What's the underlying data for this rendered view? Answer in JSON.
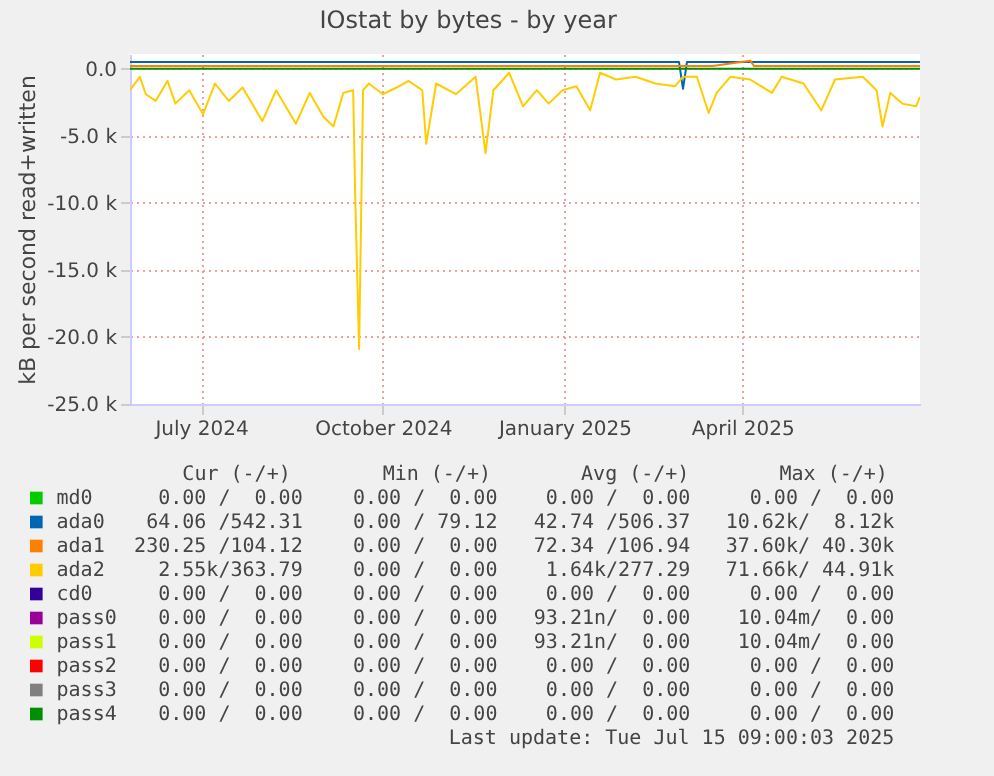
{
  "chart_data": {
    "type": "line",
    "title": "IOstat by bytes - by year",
    "ylabel": "kB per second read+written",
    "xlim": [
      "2024-06-10",
      "2025-07-15"
    ],
    "xticks": [
      {
        "value": "2024-07-16",
        "label": "July 2024"
      },
      {
        "value": "2024-10-16",
        "label": "October 2024"
      },
      {
        "value": "2025-01-16",
        "label": "January 2025"
      },
      {
        "value": "2025-04-16",
        "label": "April 2025"
      }
    ],
    "ylim": [
      -25000,
      1100
    ],
    "yticks": [
      {
        "value": -25000,
        "label": "-25.0 k"
      },
      {
        "value": -20000,
        "label": "-20.0 k"
      },
      {
        "value": -15000,
        "label": "-15.0 k"
      },
      {
        "value": -10000,
        "label": "-10.0 k"
      },
      {
        "value": -5000,
        "label": "-5.0 k"
      },
      {
        "value": 0,
        "label": "0.0"
      }
    ],
    "grid": true,
    "legend": "bottom",
    "series": [
      {
        "name": "md0",
        "color": "#00cc00"
      },
      {
        "name": "ada0",
        "color": "#0066b3",
        "x": [
          "2024-06-10",
          "2024-08-01",
          "2024-10-01",
          "2024-12-01",
          "2025-02-01",
          "2025-03-15",
          "2025-03-17",
          "2025-03-19",
          "2025-04-20",
          "2025-06-01",
          "2025-07-15"
        ],
        "values": [
          500,
          500,
          500,
          500,
          500,
          500,
          -1500,
          500,
          500,
          500,
          500
        ]
      },
      {
        "name": "ada1",
        "color": "#ff8000",
        "x": [
          "2024-06-10",
          "2024-08-01",
          "2024-10-01",
          "2024-12-01",
          "2025-02-01",
          "2025-04-01",
          "2025-04-20",
          "2025-04-22",
          "2025-05-15",
          "2025-07-15"
        ],
        "values": [
          200,
          200,
          200,
          200,
          200,
          200,
          600,
          200,
          200,
          200
        ]
      },
      {
        "name": "ada2",
        "color": "#ffcc00",
        "x": [
          "2024-06-10",
          "2024-06-15",
          "2024-06-18",
          "2024-06-23",
          "2024-06-29",
          "2024-07-03",
          "2024-07-10",
          "2024-07-17",
          "2024-07-23",
          "2024-07-30",
          "2024-08-06",
          "2024-08-16",
          "2024-08-23",
          "2024-09-02",
          "2024-09-09",
          "2024-09-16",
          "2024-09-21",
          "2024-09-26",
          "2024-10-01",
          "2024-10-02",
          "2024-10-04",
          "2024-10-06",
          "2024-10-09",
          "2024-10-16",
          "2024-10-23",
          "2024-10-29",
          "2024-11-05",
          "2024-11-07",
          "2024-11-12",
          "2024-11-22",
          "2024-12-02",
          "2024-12-07",
          "2024-12-11",
          "2024-12-19",
          "2024-12-26",
          "2025-01-02",
          "2025-01-08",
          "2025-01-15",
          "2025-01-22",
          "2025-01-29",
          "2025-02-03",
          "2025-02-11",
          "2025-02-21",
          "2025-03-03",
          "2025-03-13",
          "2025-03-17",
          "2025-03-24",
          "2025-03-30",
          "2025-04-03",
          "2025-04-10",
          "2025-04-20",
          "2025-05-01",
          "2025-05-06",
          "2025-05-17",
          "2025-05-26",
          "2025-06-02",
          "2025-06-16",
          "2025-06-23",
          "2025-06-26",
          "2025-06-30",
          "2025-07-06",
          "2025-07-13",
          "2025-07-15"
        ],
        "values": [
          -1600,
          -600,
          -1900,
          -2400,
          -900,
          -2600,
          -1600,
          -3400,
          -1100,
          -2400,
          -1400,
          -3900,
          -1600,
          -4100,
          -1800,
          -3600,
          -4300,
          -1800,
          -1600,
          -9300,
          -20900,
          -1600,
          -1100,
          -1900,
          -1400,
          -900,
          -1600,
          -5600,
          -1100,
          -1900,
          -600,
          -6300,
          -1600,
          -300,
          -2800,
          -1600,
          -2600,
          -1600,
          -1300,
          -3100,
          -300,
          -800,
          -600,
          -1100,
          -1300,
          -600,
          -600,
          -3300,
          -1800,
          -600,
          -800,
          -1800,
          -600,
          -1100,
          -3100,
          -800,
          -600,
          -1600,
          -4300,
          -1800,
          -2600,
          -2800,
          -2100
        ]
      },
      {
        "name": "cd0",
        "color": "#330099"
      },
      {
        "name": "pass0",
        "color": "#990099"
      },
      {
        "name": "pass1",
        "color": "#ccff00"
      },
      {
        "name": "pass2",
        "color": "#ff0000"
      },
      {
        "name": "pass3",
        "color": "#808080"
      },
      {
        "name": "pass4",
        "color": "#008f00",
        "x": [
          "2024-06-10",
          "2025-07-15"
        ],
        "values": [
          0,
          0
        ]
      }
    ],
    "annotations": [
      "Cur (-/+)",
      "Min (-/+)",
      "Avg (-/+)",
      "Max (-/+)",
      "0.00 /  0.00",
      "0.00 /  0.00",
      "0.00 /  0.00",
      "0.00 /  0.00",
      "64.06 /542.31",
      "0.00 / 79.12",
      "42.74 /506.37",
      "10.62k/  8.12k",
      "230.25 /104.12",
      "0.00 /  0.00",
      "72.34 /106.94",
      "37.60k/ 40.30k",
      "2.55k/363.79",
      "0.00 /  0.00",
      "1.64k/277.29",
      "71.66k/ 44.91k",
      "0.00 /  0.00",
      "0.00 /  0.00",
      "0.00 /  0.00",
      "0.00 /  0.00",
      "0.00 /  0.00",
      "0.00 /  0.00",
      "93.21n/  0.00",
      "10.04m/  0.00",
      "0.00 /  0.00",
      "0.00 /  0.00",
      "93.21n/  0.00",
      "10.04m/  0.00",
      "0.00 /  0.00",
      "0.00 /  0.00",
      "0.00 /  0.00",
      "0.00 /  0.00",
      "0.00 /  0.00",
      "0.00 /  0.00",
      "0.00 /  0.00",
      "0.00 /  0.00",
      "0.00 /  0.00",
      "0.00 /  0.00",
      "0.00 /  0.00",
      "0.00 /  0.00",
      "Last update: Tue Jul 15 09:00:03 2025"
    ]
  }
}
